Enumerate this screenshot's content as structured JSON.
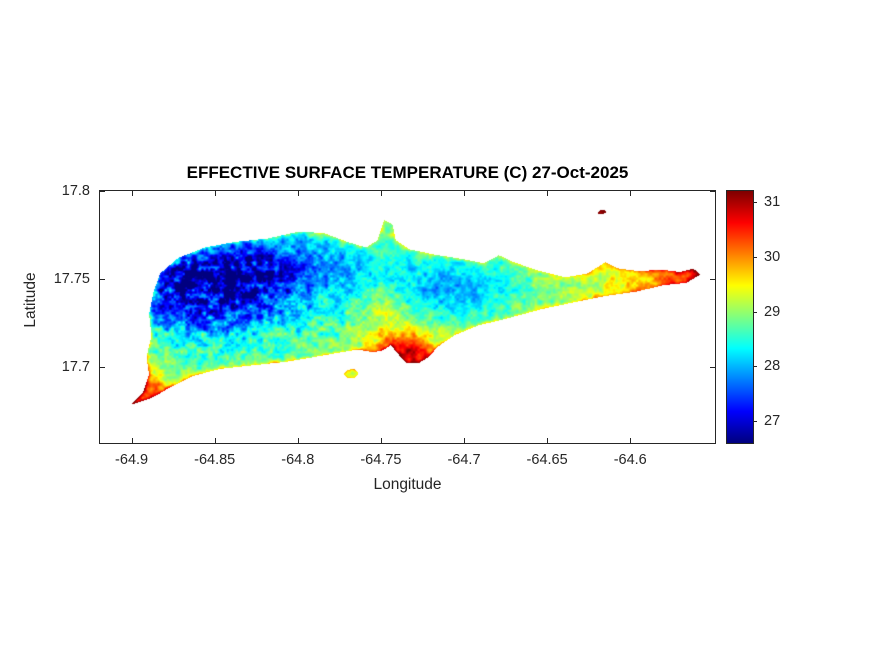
{
  "chart_data": {
    "type": "heatmap",
    "title": "EFFECTIVE SURFACE TEMPERATURE (C) 27-Oct-2025",
    "xlabel": "Longitude",
    "ylabel": "Latitude",
    "xlim": [
      -64.919,
      -64.549
    ],
    "ylim": [
      17.657,
      17.8
    ],
    "grid": false,
    "x_ticks": [
      -64.9,
      -64.85,
      -64.8,
      -64.75,
      -64.7,
      -64.65,
      -64.6
    ],
    "x_tick_labels": [
      "-64.9",
      "-64.85",
      "-64.8",
      "-64.75",
      "-64.7",
      "-64.65",
      "-64.6"
    ],
    "y_ticks": [
      17.7,
      17.75,
      17.8
    ],
    "y_tick_labels": [
      "17.7",
      "17.75",
      "17.8"
    ],
    "colorbar": {
      "colormap": "jet",
      "range": [
        26.6,
        31.2
      ],
      "ticks": [
        27,
        28,
        29,
        30,
        31
      ],
      "tick_labels": [
        "27",
        "28",
        "29",
        "30",
        "31"
      ],
      "position": "right"
    },
    "island_outline": [
      [
        -64.9005,
        17.6785
      ],
      [
        -64.893,
        17.686
      ],
      [
        -64.8895,
        17.696
      ],
      [
        -64.891,
        17.706
      ],
      [
        -64.888,
        17.718
      ],
      [
        -64.8895,
        17.73
      ],
      [
        -64.887,
        17.742
      ],
      [
        -64.883,
        17.753
      ],
      [
        -64.872,
        17.762
      ],
      [
        -64.856,
        17.768
      ],
      [
        -64.838,
        17.771
      ],
      [
        -64.818,
        17.773
      ],
      [
        -64.799,
        17.777
      ],
      [
        -64.784,
        17.776
      ],
      [
        -64.77,
        17.771
      ],
      [
        -64.759,
        17.768
      ],
      [
        -64.752,
        17.772
      ],
      [
        -64.748,
        17.7835
      ],
      [
        -64.743,
        17.781
      ],
      [
        -64.741,
        17.772
      ],
      [
        -64.733,
        17.767
      ],
      [
        -64.718,
        17.764
      ],
      [
        -64.702,
        17.7615
      ],
      [
        -64.688,
        17.759
      ],
      [
        -64.679,
        17.7635
      ],
      [
        -64.67,
        17.7595
      ],
      [
        -64.654,
        17.7545
      ],
      [
        -64.639,
        17.751
      ],
      [
        -64.626,
        17.753
      ],
      [
        -64.615,
        17.7595
      ],
      [
        -64.607,
        17.756
      ],
      [
        -64.594,
        17.7545
      ],
      [
        -64.582,
        17.7555
      ],
      [
        -64.57,
        17.754
      ],
      [
        -64.562,
        17.756
      ],
      [
        -64.558,
        17.7525
      ],
      [
        -64.566,
        17.748
      ],
      [
        -64.58,
        17.7465
      ],
      [
        -64.596,
        17.743
      ],
      [
        -64.614,
        17.7405
      ],
      [
        -64.633,
        17.737
      ],
      [
        -64.653,
        17.733
      ],
      [
        -64.673,
        17.728
      ],
      [
        -64.692,
        17.7235
      ],
      [
        -64.706,
        17.718
      ],
      [
        -64.716,
        17.7115
      ],
      [
        -64.721,
        17.706
      ],
      [
        -64.727,
        17.7025
      ],
      [
        -64.735,
        17.7025
      ],
      [
        -64.74,
        17.708
      ],
      [
        -64.744,
        17.7125
      ],
      [
        -64.749,
        17.7095
      ],
      [
        -64.755,
        17.7085
      ],
      [
        -64.764,
        17.71
      ],
      [
        -64.774,
        17.7085
      ],
      [
        -64.789,
        17.706
      ],
      [
        -64.808,
        17.703
      ],
      [
        -64.828,
        17.701
      ],
      [
        -64.847,
        17.699
      ],
      [
        -64.863,
        17.695
      ],
      [
        -64.876,
        17.689
      ],
      [
        -64.887,
        17.683
      ]
    ],
    "islet_outline": [
      [
        -64.7725,
        17.696
      ],
      [
        -64.77,
        17.6985
      ],
      [
        -64.766,
        17.699
      ],
      [
        -64.7635,
        17.6965
      ],
      [
        -64.766,
        17.6938
      ],
      [
        -64.7705,
        17.694
      ]
    ],
    "offshore_patch_outline": [
      [
        -64.6195,
        17.788
      ],
      [
        -64.6175,
        17.7893
      ],
      [
        -64.615,
        17.789
      ],
      [
        -64.6145,
        17.7875
      ],
      [
        -64.617,
        17.7868
      ],
      [
        -64.619,
        17.787
      ]
    ],
    "temperature_field": {
      "base_c": 28.9,
      "zones": [
        {
          "lon": -64.852,
          "lat": 17.746,
          "sigma_lon": 0.042,
          "sigma_lat": 0.02,
          "delta_c": -2.0
        },
        {
          "lon": -64.795,
          "lat": 17.757,
          "sigma_lon": 0.048,
          "sigma_lat": 0.013,
          "delta_c": -0.7
        },
        {
          "lon": -64.706,
          "lat": 17.744,
          "sigma_lon": 0.026,
          "sigma_lat": 0.011,
          "delta_c": -0.9
        },
        {
          "lon": -64.748,
          "lat": 17.729,
          "sigma_lon": 0.01,
          "sigma_lat": 0.013,
          "delta_c": 0.55
        },
        {
          "lon": -64.734,
          "lat": 17.708,
          "sigma_lon": 0.013,
          "sigma_lat": 0.008,
          "delta_c": 1.9
        },
        {
          "lon": -64.893,
          "lat": 17.685,
          "sigma_lon": 0.012,
          "sigma_lat": 0.009,
          "delta_c": 1.5
        },
        {
          "lon": -64.56,
          "lat": 17.754,
          "sigma_lon": 0.016,
          "sigma_lat": 0.007,
          "delta_c": 0.7
        },
        {
          "lon": -64.617,
          "lat": 17.7885,
          "sigma_lon": 0.005,
          "sigma_lat": 0.003,
          "delta_c": 1.8
        }
      ],
      "east_gradient": {
        "start_lon": -64.67,
        "end_lon": -64.552,
        "delta_c": 1.0
      },
      "coast_edge_warming_c": 1.1,
      "noise": {
        "base_amp_c": 0.33,
        "cool_extra_amp_c": 0.55
      }
    }
  }
}
